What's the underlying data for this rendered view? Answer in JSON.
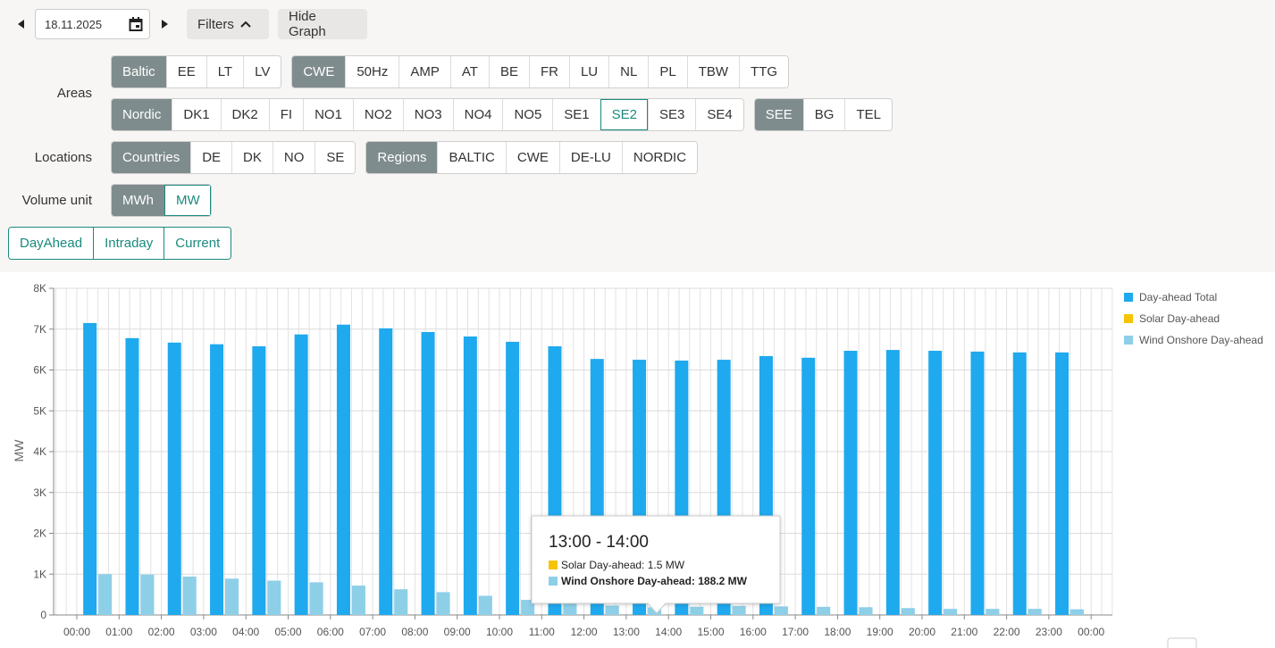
{
  "toolbar": {
    "date": "18.11.2025",
    "filters": "Filters",
    "hide_graph": "Hide Graph"
  },
  "filters": {
    "areas": {
      "label": "Areas",
      "groups": [
        [
          "Baltic",
          "EE",
          "LT",
          "LV"
        ],
        [
          "CWE",
          "50Hz",
          "AMP",
          "AT",
          "BE",
          "FR",
          "LU",
          "NL",
          "PL",
          "TBW",
          "TTG"
        ],
        [
          "Nordic",
          "DK1",
          "DK2",
          "FI",
          "NO1",
          "NO2",
          "NO3",
          "NO4",
          "NO5",
          "SE1",
          "SE2",
          "SE3",
          "SE4"
        ],
        [
          "SEE",
          "BG",
          "TEL"
        ]
      ]
    },
    "locations": {
      "label": "Locations",
      "groups": [
        [
          "Countries",
          "DE",
          "DK",
          "NO",
          "SE"
        ],
        [
          "Regions",
          "BALTIC",
          "CWE",
          "DE-LU",
          "NORDIC"
        ]
      ]
    },
    "volume_unit": {
      "label": "Volume unit",
      "groups": [
        [
          "MWh",
          "MW"
        ]
      ]
    },
    "market": {
      "groups": [
        [
          "DayAhead",
          "Intraday",
          "Current"
        ]
      ]
    }
  },
  "chart_data": {
    "type": "bar",
    "y_label": "MW",
    "xticks": [
      "00:00",
      "01:00",
      "02:00",
      "03:00",
      "04:00",
      "05:00",
      "06:00",
      "07:00",
      "08:00",
      "09:00",
      "10:00",
      "11:00",
      "12:00",
      "13:00",
      "14:00",
      "15:00",
      "16:00",
      "17:00",
      "18:00",
      "19:00",
      "20:00",
      "21:00",
      "22:00",
      "23:00",
      "00:00"
    ],
    "ylim": [
      0,
      8000
    ],
    "yticks": [
      0,
      {
        "value": 1000,
        "label": "1K"
      },
      {
        "value": 2000,
        "label": "2K"
      },
      {
        "value": 3000,
        "label": "3K"
      },
      {
        "value": 4000,
        "label": "4K"
      },
      {
        "value": 5000,
        "label": "5K"
      },
      {
        "value": 6000,
        "label": "6K"
      },
      {
        "value": 7000,
        "label": "7K"
      },
      {
        "value": 8000,
        "label": "8K"
      }
    ],
    "grid": true,
    "legend": "right",
    "series": [
      {
        "name": "Day-ahead Total",
        "color": "#1fa9ee",
        "values": [
          7150,
          6780,
          6670,
          6630,
          6580,
          6870,
          7110,
          7020,
          6930,
          6820,
          6690,
          6580,
          6270,
          6250,
          6230,
          6250,
          6340,
          6300,
          6470,
          6490,
          6470,
          6450,
          6430,
          6430
        ]
      },
      {
        "name": "Solar Day-ahead",
        "color": "#f6c400",
        "values": [
          0,
          0,
          0,
          0,
          0,
          0,
          0,
          0,
          0,
          0.3,
          0.8,
          1.2,
          1.4,
          1.5,
          1.0,
          0.4,
          0,
          0,
          0,
          0,
          0,
          0,
          0,
          0
        ]
      },
      {
        "name": "Wind Onshore Day-ahead",
        "color": "#8ecfe8",
        "values": [
          1000,
          990,
          940,
          890,
          840,
          800,
          720,
          630,
          560,
          470,
          370,
          290,
          230,
          188.2,
          200,
          220,
          210,
          200,
          190,
          170,
          150,
          150,
          150,
          140
        ]
      }
    ],
    "tooltip": {
      "title": "13:00 - 14:00",
      "items": [
        "Solar Day-ahead: 1.5 MW",
        "Wind Onshore Day-ahead: 188.2 MW"
      ]
    }
  }
}
